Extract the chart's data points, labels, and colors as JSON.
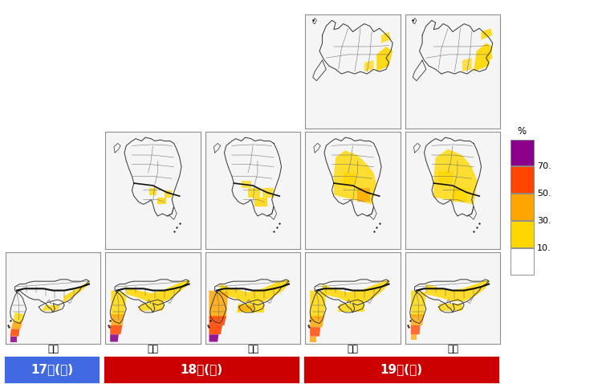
{
  "day_labels": [
    "17日(土)",
    "18日(日)",
    "19日(月)"
  ],
  "day_colors": [
    "#4169E1",
    "#CC0000",
    "#CC0000"
  ],
  "time_labels": [
    "夜間",
    "日中",
    "夜間",
    "日中",
    "夜間"
  ],
  "colorbar_labels": [
    "70.",
    "50.",
    "30.",
    "10."
  ],
  "colorbar_colors_top_to_bottom": [
    "#8B008B",
    "#FF4500",
    "#FFA500",
    "#FFD700",
    "#FFFFFF"
  ],
  "colorbar_pct": "%",
  "bg_color": "#FFFFFF",
  "panel_facecolor": "#F5F5F5"
}
